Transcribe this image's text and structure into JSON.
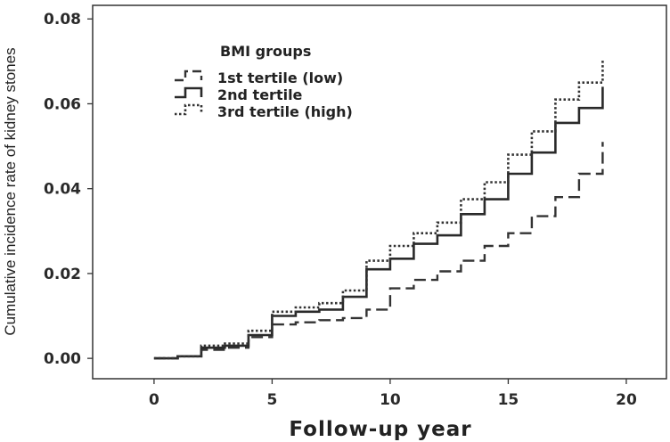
{
  "chart_data": {
    "type": "line",
    "step": true,
    "xlabel": "Follow-up year",
    "ylabel": "Cumulative incidence rate of kidney stones",
    "xlim": [
      -2.6,
      21.7
    ],
    "ylim": [
      -0.0048,
      0.0832
    ],
    "x_ticks": [
      0,
      5,
      10,
      15,
      20
    ],
    "x_tick_labels": [
      "0",
      "5",
      "10",
      "15",
      "20"
    ],
    "y_ticks": [
      0.0,
      0.02,
      0.04,
      0.06,
      0.08
    ],
    "y_tick_labels": [
      "0.00",
      "0.02",
      "0.04",
      "0.06",
      "0.08"
    ],
    "grid": false,
    "legend": {
      "title": "BMI groups",
      "placement": "top-left"
    },
    "series": [
      {
        "name": "1st tertile (low)",
        "dash": "long-dash",
        "color": "#333333",
        "points": [
          [
            0,
            0.0
          ],
          [
            1,
            0.0005
          ],
          [
            2,
            0.002
          ],
          [
            3,
            0.0025
          ],
          [
            4,
            0.005
          ],
          [
            5,
            0.008
          ],
          [
            6,
            0.0085
          ],
          [
            7,
            0.009
          ],
          [
            8,
            0.0095
          ],
          [
            9,
            0.0115
          ],
          [
            10,
            0.0165
          ],
          [
            11,
            0.0185
          ],
          [
            12,
            0.0205
          ],
          [
            13,
            0.023
          ],
          [
            14,
            0.0265
          ],
          [
            15,
            0.0295
          ],
          [
            16,
            0.0335
          ],
          [
            17,
            0.038
          ],
          [
            18,
            0.0435
          ],
          [
            19,
            0.0465
          ],
          [
            19,
            0.051
          ]
        ]
      },
      {
        "name": "2nd tertile",
        "dash": "solid",
        "color": "#2a2a2a",
        "points": [
          [
            0,
            0.0
          ],
          [
            1,
            0.0005
          ],
          [
            2,
            0.0025
          ],
          [
            3,
            0.003
          ],
          [
            4,
            0.0055
          ],
          [
            5,
            0.01
          ],
          [
            6,
            0.011
          ],
          [
            7,
            0.0115
          ],
          [
            8,
            0.0145
          ],
          [
            9,
            0.021
          ],
          [
            10,
            0.0235
          ],
          [
            11,
            0.027
          ],
          [
            12,
            0.029
          ],
          [
            13,
            0.034
          ],
          [
            14,
            0.0375
          ],
          [
            15,
            0.0435
          ],
          [
            16,
            0.0485
          ],
          [
            17,
            0.0555
          ],
          [
            18,
            0.059
          ],
          [
            19,
            0.059
          ],
          [
            19,
            0.064
          ]
        ]
      },
      {
        "name": "3rd tertile (high)",
        "dash": "dotted",
        "color": "#333333",
        "points": [
          [
            0,
            0.0
          ],
          [
            1,
            0.0005
          ],
          [
            2,
            0.003
          ],
          [
            3,
            0.0035
          ],
          [
            4,
            0.0065
          ],
          [
            5,
            0.011
          ],
          [
            6,
            0.012
          ],
          [
            7,
            0.013
          ],
          [
            8,
            0.016
          ],
          [
            9,
            0.023
          ],
          [
            10,
            0.0265
          ],
          [
            11,
            0.0295
          ],
          [
            12,
            0.032
          ],
          [
            13,
            0.0375
          ],
          [
            14,
            0.0415
          ],
          [
            15,
            0.048
          ],
          [
            16,
            0.0535
          ],
          [
            17,
            0.061
          ],
          [
            18,
            0.065
          ],
          [
            19,
            0.065
          ],
          [
            19,
            0.0705
          ]
        ]
      }
    ]
  }
}
